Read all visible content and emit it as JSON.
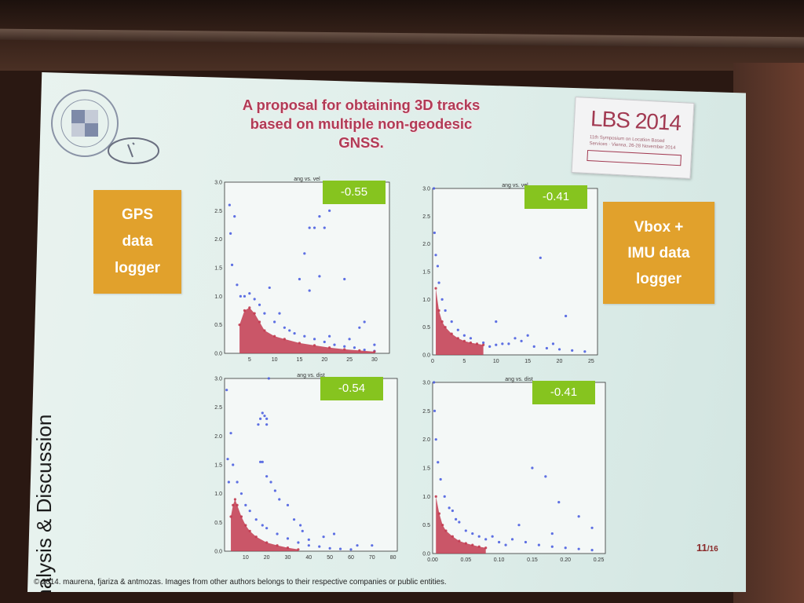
{
  "slide": {
    "title": "A proposal for obtaining 3D tracks\nbased on multiple non-geodesic\nGNSS.",
    "section": "Analysis & Discussion",
    "left_box": "GPS\ndata\nlogger",
    "right_box": "Vbox +\nIMU data\nlogger",
    "page": "11",
    "page_total": "/16",
    "footer": "© 2014. maurena, fjariza & antmozas.  Images from other authors belongs to their respective companies or public entities.",
    "logo": {
      "title": "LBS 2014",
      "subtitle": "11th Symposium on Location Based Services · Vienna, 26-28 November 2014"
    }
  },
  "colors": {
    "accent": "#b13a55",
    "orange": "#e1a12c",
    "badge": "#86c41f",
    "points_blue": "#4d5fe0",
    "points_red": "#c23a4f"
  },
  "chart_data": [
    {
      "type": "scatter",
      "title": "ang vs. vel",
      "badge": "-0.55",
      "xlim": [
        0,
        33
      ],
      "ylim": [
        0,
        3.0
      ],
      "x_ticks": [
        "5",
        "10",
        "15",
        "20",
        "25",
        "30"
      ],
      "y_ticks": [
        "0.0",
        "0.5",
        "1.0",
        "1.5",
        "2.0",
        "2.5",
        "3.0"
      ],
      "series": [
        {
          "color": "blue",
          "points": [
            [
              1.0,
              2.6
            ],
            [
              1.2,
              2.1
            ],
            [
              1.5,
              1.55
            ],
            [
              2.0,
              2.4
            ],
            [
              2.5,
              1.2
            ],
            [
              3.2,
              1.0
            ],
            [
              4,
              1.0
            ],
            [
              5,
              1.05
            ],
            [
              6,
              0.95
            ],
            [
              7,
              0.85
            ],
            [
              8,
              0.7
            ],
            [
              10,
              0.55
            ],
            [
              12,
              0.45
            ],
            [
              14,
              0.35
            ],
            [
              16,
              0.3
            ],
            [
              18,
              0.25
            ],
            [
              20,
              0.2
            ],
            [
              22,
              0.15
            ],
            [
              24,
              0.12
            ],
            [
              26,
              0.1
            ],
            [
              28,
              0.06
            ],
            [
              30,
              0.04
            ],
            [
              18,
              2.2
            ],
            [
              19,
              2.4
            ],
            [
              20,
              2.2
            ],
            [
              21,
              2.5
            ],
            [
              17,
              2.2
            ],
            [
              16,
              1.75
            ],
            [
              15,
              1.3
            ],
            [
              17,
              1.1
            ],
            [
              19,
              1.35
            ],
            [
              24,
              1.3
            ],
            [
              27,
              0.45
            ],
            [
              28,
              0.55
            ],
            [
              30,
              0.15
            ],
            [
              21,
              0.3
            ],
            [
              9,
              1.15
            ],
            [
              11,
              0.7
            ],
            [
              13,
              0.4
            ],
            [
              25,
              0.25
            ]
          ]
        },
        {
          "color": "red",
          "points": [
            [
              3,
              0.5
            ],
            [
              4,
              0.75
            ],
            [
              5,
              0.8
            ],
            [
              6,
              0.7
            ],
            [
              7,
              0.55
            ],
            [
              8,
              0.4
            ],
            [
              10,
              0.3
            ],
            [
              12,
              0.25
            ],
            [
              15,
              0.18
            ],
            [
              18,
              0.14
            ],
            [
              21,
              0.1
            ],
            [
              24,
              0.07
            ],
            [
              27,
              0.05
            ],
            [
              30,
              0.03
            ]
          ]
        }
      ]
    },
    {
      "type": "scatter",
      "title": "ang vs. vel",
      "badge": "-0.41",
      "xlim": [
        0,
        26
      ],
      "ylim": [
        0,
        3.0
      ],
      "x_ticks": [
        "0",
        "5",
        "10",
        "15",
        "20",
        "25"
      ],
      "y_ticks": [
        "0.0",
        "0.5",
        "1.0",
        "1.5",
        "2.0",
        "2.5",
        "3.0"
      ],
      "series": [
        {
          "color": "blue",
          "points": [
            [
              0.2,
              3.0
            ],
            [
              0.3,
              2.2
            ],
            [
              0.5,
              1.8
            ],
            [
              0.8,
              1.6
            ],
            [
              1.0,
              1.3
            ],
            [
              1.5,
              1.0
            ],
            [
              2,
              0.8
            ],
            [
              3,
              0.6
            ],
            [
              4,
              0.45
            ],
            [
              5,
              0.35
            ],
            [
              6,
              0.3
            ],
            [
              8,
              0.22
            ],
            [
              10,
              0.18
            ],
            [
              12,
              0.2
            ],
            [
              14,
              0.25
            ],
            [
              16,
              0.15
            ],
            [
              18,
              0.12
            ],
            [
              20,
              0.1
            ],
            [
              22,
              0.08
            ],
            [
              24,
              0.06
            ],
            [
              17,
              1.75
            ],
            [
              21,
              0.7
            ],
            [
              10,
              0.6
            ],
            [
              13,
              0.3
            ],
            [
              15,
              0.35
            ],
            [
              19,
              0.2
            ],
            [
              11,
              0.2
            ],
            [
              9,
              0.15
            ]
          ]
        },
        {
          "color": "red",
          "points": [
            [
              0.5,
              1.2
            ],
            [
              1,
              0.8
            ],
            [
              1.5,
              0.6
            ],
            [
              2,
              0.5
            ],
            [
              3,
              0.38
            ],
            [
              4,
              0.3
            ],
            [
              5,
              0.25
            ],
            [
              6,
              0.22
            ],
            [
              7,
              0.2
            ],
            [
              8,
              0.18
            ]
          ]
        }
      ]
    },
    {
      "type": "scatter",
      "title": "ang vs. dist",
      "badge": "-0.54",
      "xlim": [
        0,
        82
      ],
      "ylim": [
        0,
        3.0
      ],
      "x_ticks": [
        "10",
        "20",
        "30",
        "40",
        "50",
        "60",
        "70",
        "80"
      ],
      "y_ticks": [
        "0.0",
        "0.5",
        "1.0",
        "1.5",
        "2.0",
        "2.5",
        "3.0"
      ],
      "series": [
        {
          "color": "blue",
          "points": [
            [
              1,
              2.8
            ],
            [
              1.5,
              1.6
            ],
            [
              2,
              1.2
            ],
            [
              3,
              2.05
            ],
            [
              4,
              1.5
            ],
            [
              6,
              1.2
            ],
            [
              8,
              1.0
            ],
            [
              10,
              0.8
            ],
            [
              12,
              0.7
            ],
            [
              15,
              0.55
            ],
            [
              18,
              0.45
            ],
            [
              20,
              0.4
            ],
            [
              25,
              0.3
            ],
            [
              30,
              0.22
            ],
            [
              35,
              0.15
            ],
            [
              40,
              0.1
            ],
            [
              45,
              0.08
            ],
            [
              50,
              0.05
            ],
            [
              55,
              0.04
            ],
            [
              60,
              0.03
            ],
            [
              17,
              2.3
            ],
            [
              18,
              2.4
            ],
            [
              19,
              2.35
            ],
            [
              20,
              2.3
            ],
            [
              16,
              2.2
            ],
            [
              21,
              3.0
            ],
            [
              20,
              2.2
            ],
            [
              17,
              1.55
            ],
            [
              18,
              1.55
            ],
            [
              20,
              1.3
            ],
            [
              22,
              1.2
            ],
            [
              24,
              1.05
            ],
            [
              26,
              0.9
            ],
            [
              30,
              0.8
            ],
            [
              33,
              0.55
            ],
            [
              36,
              0.45
            ],
            [
              37,
              0.35
            ],
            [
              40,
              0.2
            ],
            [
              47,
              0.25
            ],
            [
              52,
              0.3
            ],
            [
              63,
              0.1
            ],
            [
              70,
              0.1
            ]
          ]
        },
        {
          "color": "red",
          "points": [
            [
              3,
              0.6
            ],
            [
              4,
              0.8
            ],
            [
              5,
              0.9
            ],
            [
              6,
              0.8
            ],
            [
              8,
              0.6
            ],
            [
              10,
              0.45
            ],
            [
              12,
              0.35
            ],
            [
              15,
              0.25
            ],
            [
              20,
              0.15
            ],
            [
              25,
              0.1
            ],
            [
              30,
              0.06
            ],
            [
              35,
              0.03
            ]
          ]
        }
      ]
    },
    {
      "type": "scatter",
      "title": "ang vs. dist",
      "badge": "-0.41",
      "xlim": [
        0,
        0.26
      ],
      "ylim": [
        0,
        3.0
      ],
      "x_ticks": [
        "0.00",
        "0.05",
        "0.10",
        "0.15",
        "0.20",
        "0.25"
      ],
      "y_ticks": [
        "0.0",
        "0.5",
        "1.0",
        "1.5",
        "2.0",
        "2.5",
        "3.0"
      ],
      "series": [
        {
          "color": "blue",
          "points": [
            [
              0.002,
              3.0
            ],
            [
              0.003,
              2.5
            ],
            [
              0.005,
              2.0
            ],
            [
              0.008,
              1.6
            ],
            [
              0.012,
              1.3
            ],
            [
              0.018,
              1.0
            ],
            [
              0.025,
              0.8
            ],
            [
              0.03,
              0.75
            ],
            [
              0.035,
              0.6
            ],
            [
              0.04,
              0.55
            ],
            [
              0.05,
              0.4
            ],
            [
              0.06,
              0.35
            ],
            [
              0.07,
              0.3
            ],
            [
              0.08,
              0.25
            ],
            [
              0.1,
              0.2
            ],
            [
              0.12,
              0.25
            ],
            [
              0.14,
              0.2
            ],
            [
              0.16,
              0.15
            ],
            [
              0.18,
              0.12
            ],
            [
              0.2,
              0.1
            ],
            [
              0.22,
              0.08
            ],
            [
              0.24,
              0.06
            ],
            [
              0.17,
              1.35
            ],
            [
              0.15,
              1.5
            ],
            [
              0.19,
              0.9
            ],
            [
              0.22,
              0.65
            ],
            [
              0.24,
              0.45
            ],
            [
              0.18,
              0.35
            ],
            [
              0.11,
              0.15
            ],
            [
              0.09,
              0.3
            ],
            [
              0.13,
              0.5
            ]
          ]
        },
        {
          "color": "red",
          "points": [
            [
              0.005,
              1.0
            ],
            [
              0.01,
              0.7
            ],
            [
              0.015,
              0.5
            ],
            [
              0.02,
              0.4
            ],
            [
              0.03,
              0.3
            ],
            [
              0.04,
              0.22
            ],
            [
              0.05,
              0.18
            ],
            [
              0.06,
              0.15
            ],
            [
              0.07,
              0.12
            ],
            [
              0.08,
              0.1
            ]
          ]
        }
      ]
    }
  ]
}
